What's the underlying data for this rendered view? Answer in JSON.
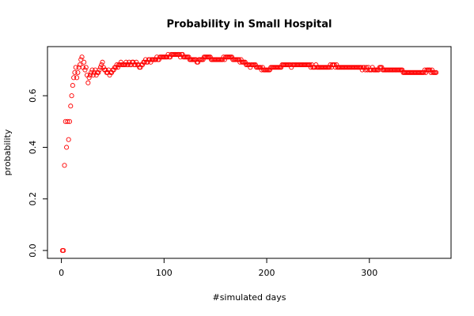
{
  "chart_data": {
    "type": "scatter",
    "title": "Probability in Small Hospital",
    "x_label": "#simulated days",
    "y_label": "probability",
    "color": "#ff0000",
    "xlim": [
      -13.56,
      379.56
    ],
    "ylim": [
      -0.0304,
      0.7904
    ],
    "xticks": [
      0,
      100,
      200,
      300
    ],
    "yticks": [
      {
        "value": 0,
        "label": "0.0"
      },
      {
        "value": 0.2,
        "label": "0.2"
      },
      {
        "value": 0.4,
        "label": "0.4"
      },
      {
        "value": 0.6,
        "label": "0.6"
      }
    ],
    "x": [
      1,
      2,
      3,
      4,
      5,
      6,
      7,
      8,
      9,
      10,
      11,
      12,
      13,
      14,
      15,
      16,
      17,
      18,
      19,
      20,
      21,
      22,
      23,
      24,
      25,
      26,
      27,
      28,
      29,
      30,
      31,
      32,
      33,
      34,
      35,
      36,
      37,
      38,
      39,
      40,
      41,
      42,
      43,
      44,
      45,
      46,
      47,
      48,
      49,
      50,
      51,
      52,
      53,
      54,
      55,
      56,
      57,
      58,
      59,
      60,
      61,
      62,
      63,
      64,
      65,
      66,
      67,
      68,
      69,
      70,
      71,
      72,
      73,
      74,
      75,
      76,
      77,
      78,
      79,
      80,
      81,
      82,
      83,
      84,
      85,
      86,
      87,
      88,
      89,
      90,
      91,
      92,
      93,
      94,
      95,
      96,
      97,
      98,
      99,
      100,
      101,
      102,
      103,
      104,
      105,
      106,
      107,
      108,
      109,
      110,
      111,
      112,
      113,
      114,
      115,
      116,
      117,
      118,
      119,
      120,
      121,
      122,
      123,
      124,
      125,
      126,
      127,
      128,
      129,
      130,
      131,
      132,
      133,
      134,
      135,
      136,
      137,
      138,
      139,
      140,
      141,
      142,
      143,
      144,
      145,
      146,
      147,
      148,
      149,
      150,
      151,
      152,
      153,
      154,
      155,
      156,
      157,
      158,
      159,
      160,
      161,
      162,
      163,
      164,
      165,
      166,
      167,
      168,
      169,
      170,
      171,
      172,
      173,
      174,
      175,
      176,
      177,
      178,
      179,
      180,
      181,
      182,
      183,
      184,
      185,
      186,
      187,
      188,
      189,
      190,
      191,
      192,
      193,
      194,
      195,
      196,
      197,
      198,
      199,
      200,
      201,
      202,
      203,
      204,
      205,
      206,
      207,
      208,
      209,
      210,
      211,
      212,
      213,
      214,
      215,
      216,
      217,
      218,
      219,
      220,
      221,
      222,
      223,
      224,
      225,
      226,
      227,
      228,
      229,
      230,
      231,
      232,
      233,
      234,
      235,
      236,
      237,
      238,
      239,
      240,
      241,
      242,
      243,
      244,
      245,
      246,
      247,
      248,
      249,
      250,
      251,
      252,
      253,
      254,
      255,
      256,
      257,
      258,
      259,
      260,
      261,
      262,
      263,
      264,
      265,
      266,
      267,
      268,
      269,
      270,
      271,
      272,
      273,
      274,
      275,
      276,
      277,
      278,
      279,
      280,
      281,
      282,
      283,
      284,
      285,
      286,
      287,
      288,
      289,
      290,
      291,
      292,
      293,
      294,
      295,
      296,
      297,
      298,
      299,
      300,
      301,
      302,
      303,
      304,
      305,
      306,
      307,
      308,
      309,
      310,
      311,
      312,
      313,
      314,
      315,
      316,
      317,
      318,
      319,
      320,
      321,
      322,
      323,
      324,
      325,
      326,
      327,
      328,
      329,
      330,
      331,
      332,
      333,
      334,
      335,
      336,
      337,
      338,
      339,
      340,
      341,
      342,
      343,
      344,
      345,
      346,
      347,
      348,
      349,
      350,
      351,
      352,
      353,
      354,
      355,
      356,
      357,
      358,
      359,
      360,
      361,
      362,
      363,
      364,
      365
    ],
    "values": [
      0,
      0,
      0.33,
      0.5,
      0.4,
      0.5,
      0.43,
      0.5,
      0.56,
      0.6,
      0.64,
      0.67,
      0.69,
      0.71,
      0.67,
      0.69,
      0.71,
      0.72,
      0.74,
      0.75,
      0.71,
      0.73,
      0.7,
      0.71,
      0.68,
      0.65,
      0.67,
      0.68,
      0.69,
      0.7,
      0.68,
      0.69,
      0.7,
      0.68,
      0.69,
      0.69,
      0.7,
      0.71,
      0.72,
      0.73,
      0.71,
      0.7,
      0.7,
      0.69,
      0.69,
      0.7,
      0.68,
      0.69,
      0.69,
      0.7,
      0.7,
      0.71,
      0.71,
      0.72,
      0.71,
      0.72,
      0.72,
      0.73,
      0.72,
      0.72,
      0.72,
      0.72,
      0.73,
      0.72,
      0.72,
      0.73,
      0.72,
      0.72,
      0.73,
      0.73,
      0.72,
      0.72,
      0.73,
      0.72,
      0.72,
      0.71,
      0.71,
      0.72,
      0.72,
      0.73,
      0.73,
      0.74,
      0.73,
      0.73,
      0.74,
      0.74,
      0.73,
      0.74,
      0.74,
      0.74,
      0.74,
      0.74,
      0.75,
      0.74,
      0.74,
      0.75,
      0.75,
      0.75,
      0.75,
      0.75,
      0.75,
      0.75,
      0.75,
      0.76,
      0.75,
      0.75,
      0.76,
      0.76,
      0.76,
      0.76,
      0.76,
      0.76,
      0.76,
      0.76,
      0.76,
      0.75,
      0.76,
      0.76,
      0.75,
      0.75,
      0.75,
      0.75,
      0.75,
      0.75,
      0.74,
      0.74,
      0.74,
      0.74,
      0.74,
      0.74,
      0.74,
      0.73,
      0.73,
      0.74,
      0.74,
      0.74,
      0.74,
      0.74,
      0.75,
      0.75,
      0.75,
      0.75,
      0.75,
      0.75,
      0.75,
      0.74,
      0.74,
      0.74,
      0.74,
      0.74,
      0.74,
      0.74,
      0.74,
      0.74,
      0.74,
      0.74,
      0.74,
      0.75,
      0.74,
      0.75,
      0.75,
      0.75,
      0.75,
      0.75,
      0.75,
      0.75,
      0.74,
      0.74,
      0.74,
      0.74,
      0.74,
      0.74,
      0.74,
      0.73,
      0.74,
      0.73,
      0.73,
      0.73,
      0.73,
      0.72,
      0.72,
      0.72,
      0.72,
      0.71,
      0.72,
      0.72,
      0.72,
      0.72,
      0.72,
      0.71,
      0.71,
      0.71,
      0.71,
      0.71,
      0.7,
      0.71,
      0.7,
      0.7,
      0.7,
      0.7,
      0.7,
      0.7,
      0.7,
      0.71,
      0.71,
      0.71,
      0.71,
      0.71,
      0.71,
      0.71,
      0.71,
      0.71,
      0.71,
      0.71,
      0.72,
      0.72,
      0.72,
      0.72,
      0.72,
      0.72,
      0.72,
      0.72,
      0.72,
      0.71,
      0.72,
      0.72,
      0.72,
      0.72,
      0.72,
      0.72,
      0.72,
      0.72,
      0.72,
      0.72,
      0.72,
      0.72,
      0.72,
      0.72,
      0.72,
      0.72,
      0.72,
      0.72,
      0.71,
      0.72,
      0.71,
      0.71,
      0.71,
      0.72,
      0.71,
      0.71,
      0.71,
      0.71,
      0.71,
      0.71,
      0.71,
      0.71,
      0.71,
      0.71,
      0.71,
      0.71,
      0.71,
      0.72,
      0.71,
      0.72,
      0.72,
      0.72,
      0.71,
      0.72,
      0.71,
      0.71,
      0.71,
      0.71,
      0.71,
      0.71,
      0.71,
      0.71,
      0.71,
      0.71,
      0.71,
      0.71,
      0.71,
      0.71,
      0.71,
      0.71,
      0.71,
      0.71,
      0.71,
      0.71,
      0.71,
      0.71,
      0.71,
      0.71,
      0.7,
      0.71,
      0.71,
      0.7,
      0.71,
      0.7,
      0.71,
      0.7,
      0.7,
      0.7,
      0.71,
      0.7,
      0.7,
      0.7,
      0.7,
      0.7,
      0.7,
      0.71,
      0.71,
      0.71,
      0.7,
      0.7,
      0.7,
      0.7,
      0.7,
      0.7,
      0.7,
      0.7,
      0.7,
      0.7,
      0.7,
      0.7,
      0.7,
      0.7,
      0.7,
      0.7,
      0.7,
      0.7,
      0.7,
      0.7,
      0.69,
      0.69,
      0.69,
      0.69,
      0.69,
      0.69,
      0.69,
      0.69,
      0.69,
      0.69,
      0.69,
      0.69,
      0.69,
      0.69,
      0.69,
      0.69,
      0.69,
      0.69,
      0.69,
      0.69,
      0.69,
      0.7,
      0.69,
      0.7,
      0.7,
      0.7,
      0.7,
      0.69,
      0.7,
      0.69,
      0.69,
      0.69,
      0.69
    ]
  }
}
